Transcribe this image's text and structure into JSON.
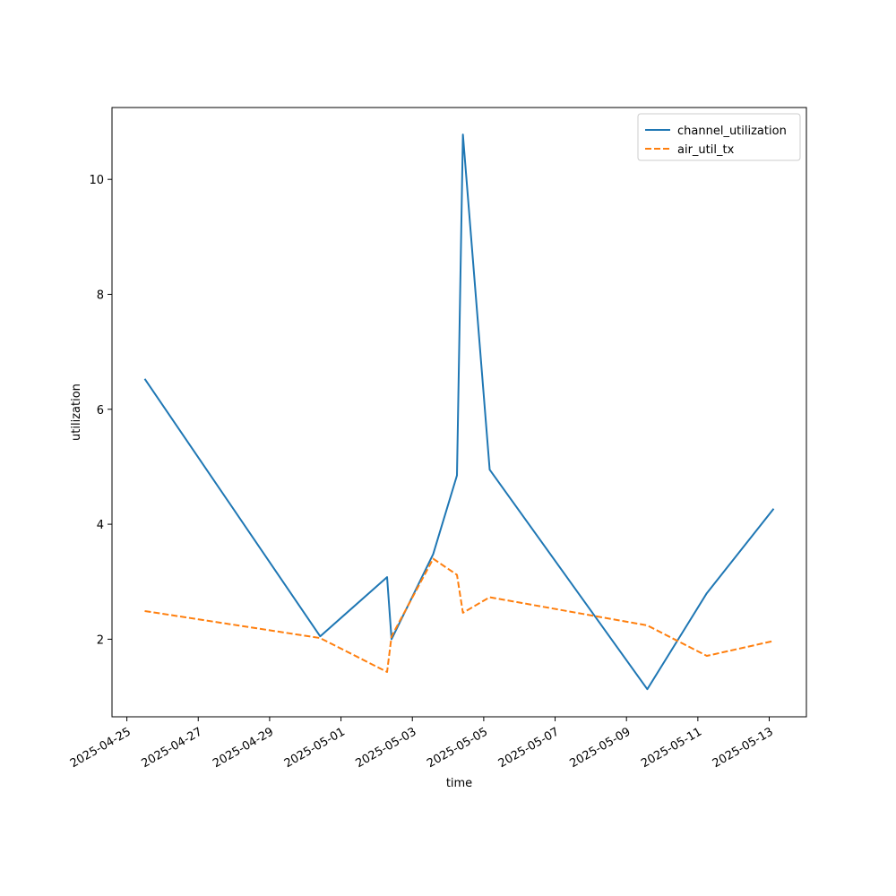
{
  "chart_data": {
    "type": "line",
    "title": "",
    "xlabel": "time",
    "ylabel": "utilization",
    "x_type": "date",
    "xlim": [
      "2025-04-24T14:00",
      "2025-05-14T01:00"
    ],
    "ylim": [
      0.65,
      11.25
    ],
    "x_ticks": [
      "2025-04-25",
      "2025-04-27",
      "2025-04-29",
      "2025-05-01",
      "2025-05-03",
      "2025-05-05",
      "2025-05-07",
      "2025-05-09",
      "2025-05-11",
      "2025-05-13"
    ],
    "y_ticks": [
      2,
      4,
      6,
      8,
      10
    ],
    "grid": false,
    "legend_position": "top-right",
    "series": [
      {
        "name": "channel_utilization",
        "color": "#1f77b4",
        "style": "solid",
        "points": [
          [
            "2025-04-25T12:00",
            6.53
          ],
          [
            "2025-04-30T10:00",
            2.05
          ],
          [
            "2025-05-02T07:00",
            3.08
          ],
          [
            "2025-05-02T10:00",
            2.0
          ],
          [
            "2025-05-03T14:00",
            3.48
          ],
          [
            "2025-05-04T06:00",
            4.85
          ],
          [
            "2025-05-04T10:00",
            10.78
          ],
          [
            "2025-05-05T04:00",
            4.95
          ],
          [
            "2025-05-09T14:00",
            1.13
          ],
          [
            "2025-05-11T06:00",
            2.8
          ],
          [
            "2025-05-13T03:00",
            4.27
          ]
        ]
      },
      {
        "name": "air_util_tx",
        "color": "#ff7f0e",
        "style": "dashed",
        "points": [
          [
            "2025-04-25T12:00",
            2.49
          ],
          [
            "2025-04-30T10:00",
            2.02
          ],
          [
            "2025-05-02T07:00",
            1.43
          ],
          [
            "2025-05-02T10:00",
            2.05
          ],
          [
            "2025-05-03T14:00",
            3.4
          ],
          [
            "2025-05-04T06:00",
            3.12
          ],
          [
            "2025-05-04T10:00",
            2.46
          ],
          [
            "2025-05-05T04:00",
            2.73
          ],
          [
            "2025-05-09T14:00",
            2.24
          ],
          [
            "2025-05-11T06:00",
            1.71
          ],
          [
            "2025-05-13T03:00",
            1.97
          ]
        ]
      }
    ]
  }
}
